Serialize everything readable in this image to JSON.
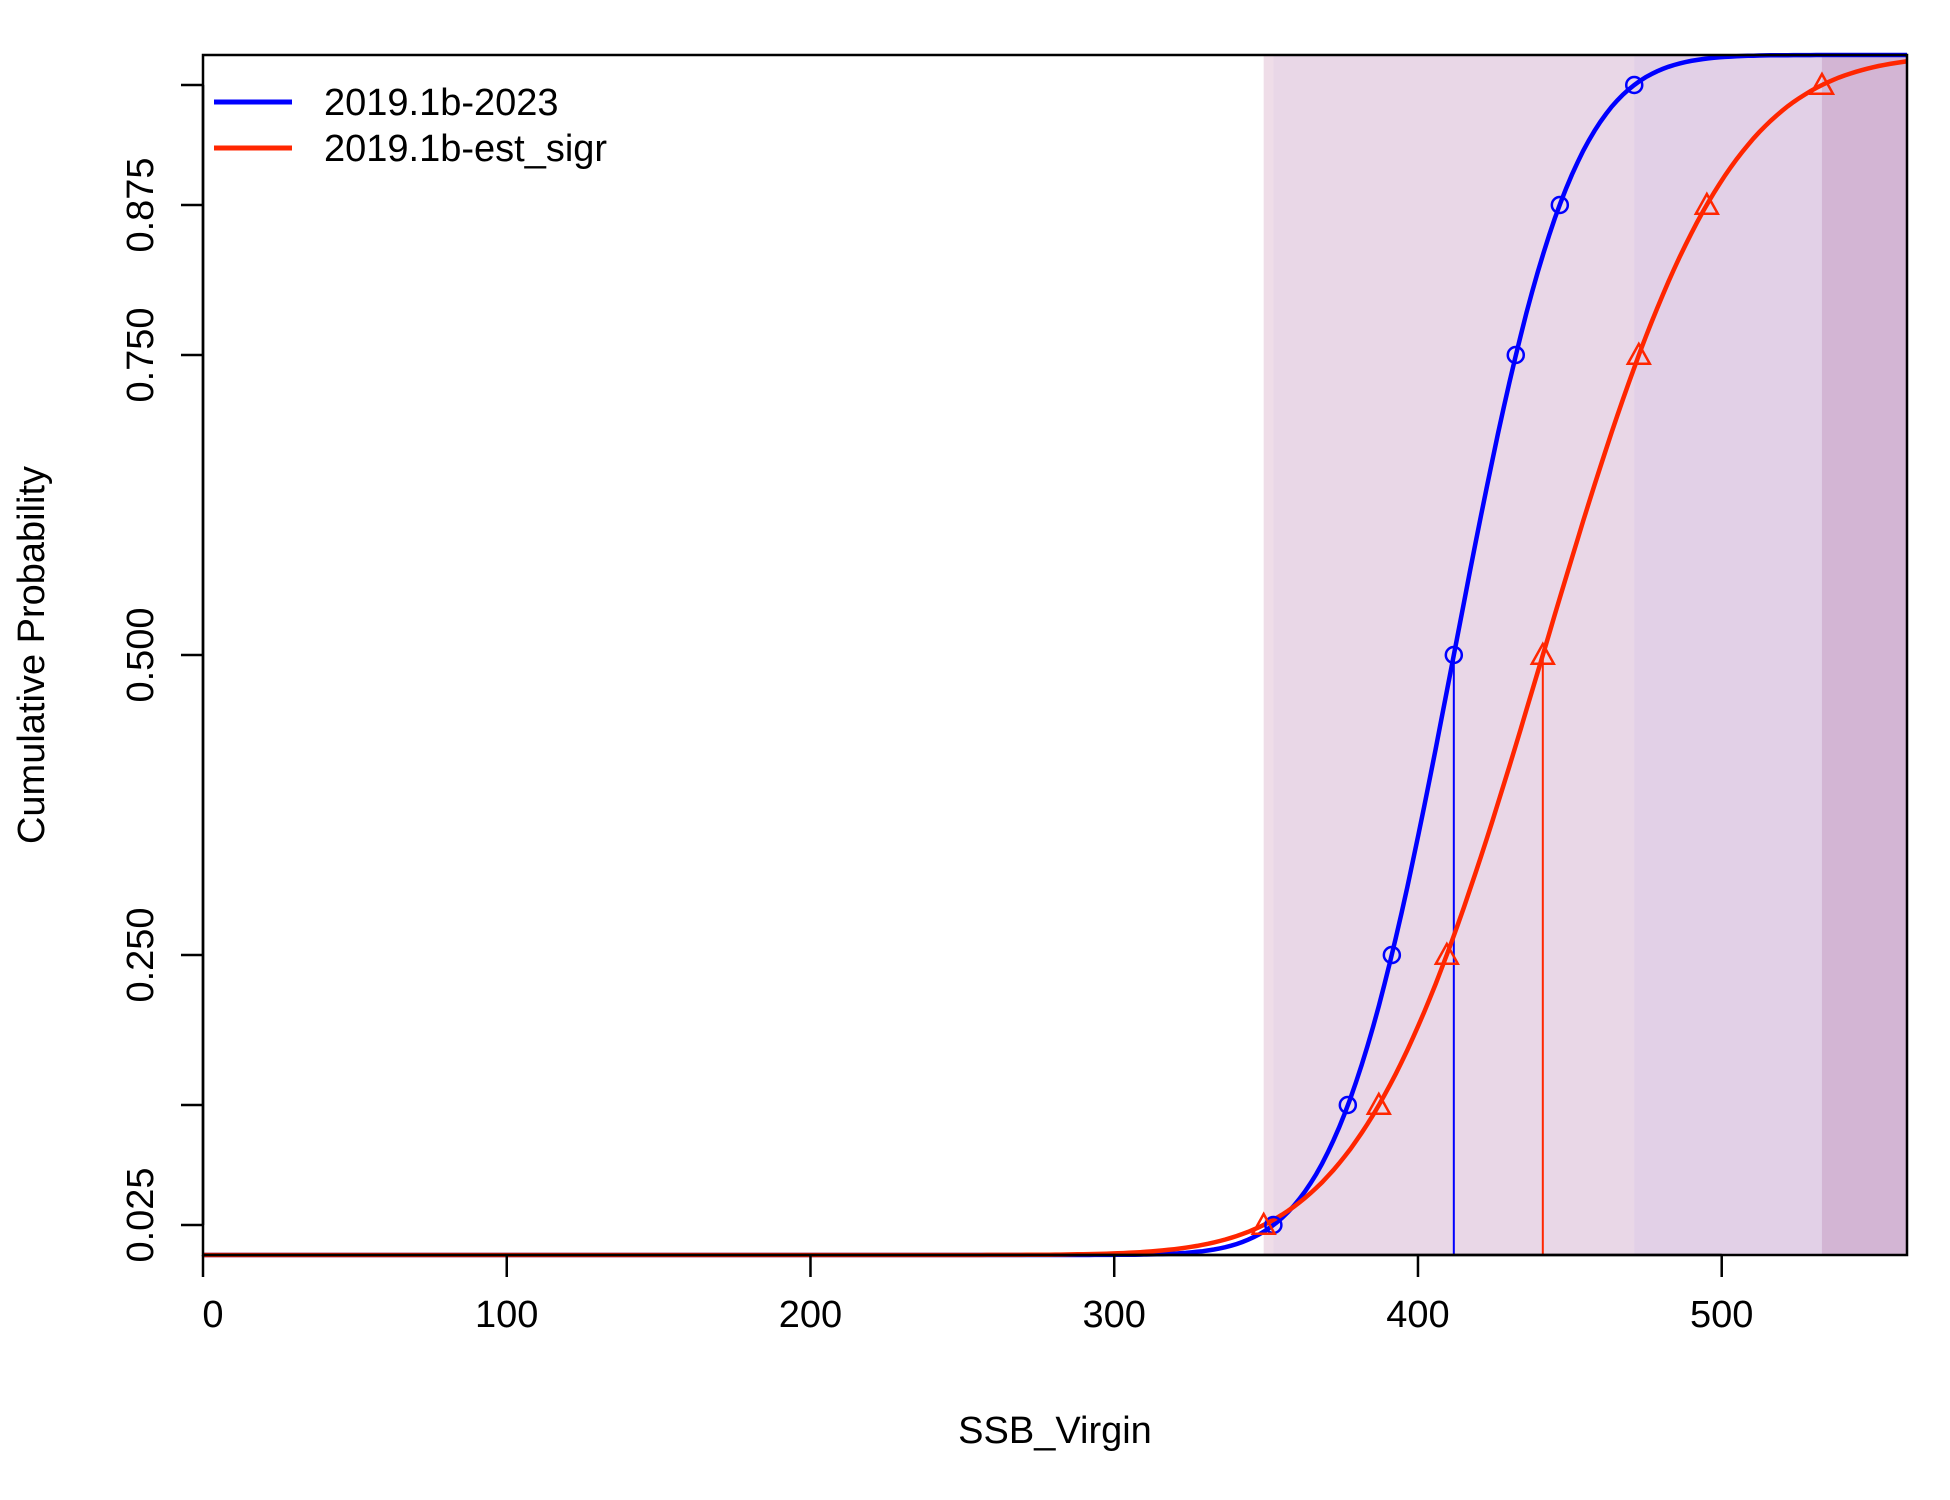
{
  "chart_data": {
    "type": "line",
    "xlabel": "SSB_Virgin",
    "ylabel": "Cumulative Probability",
    "xlim": [
      0,
      561
    ],
    "ylim": [
      0,
      1
    ],
    "x_ticks": [
      {
        "value": 0,
        "label": "0"
      },
      {
        "value": 100,
        "label": "100"
      },
      {
        "value": 200,
        "label": "200"
      },
      {
        "value": 300,
        "label": "300"
      },
      {
        "value": 400,
        "label": "400"
      },
      {
        "value": 500,
        "label": "500"
      }
    ],
    "y_ticks": [
      {
        "value": 0.025,
        "label": "0.025"
      },
      {
        "value": 0.125,
        "label": ""
      },
      {
        "value": 0.25,
        "label": "0.250"
      },
      {
        "value": 0.5,
        "label": "0.500"
      },
      {
        "value": 0.75,
        "label": "0.750"
      },
      {
        "value": 0.875,
        "label": "0.875"
      },
      {
        "value": 0.975,
        "label": ""
      }
    ],
    "legend_position": "top-left",
    "grid": false,
    "series": [
      {
        "name": "2019.1b-2023",
        "color": "#0000ff",
        "marker": "circle",
        "fill": "#e6e6fc",
        "tail_fill": "#cccbfb",
        "median": 411.8,
        "mean": 411.8,
        "sd": 30.3,
        "quantiles": [
          {
            "p": 0.025,
            "x": 352.4
          },
          {
            "p": 0.125,
            "x": 376.9
          },
          {
            "p": 0.25,
            "x": 391.4
          },
          {
            "p": 0.5,
            "x": 411.8
          },
          {
            "p": 0.75,
            "x": 432.2
          },
          {
            "p": 0.875,
            "x": 446.7
          },
          {
            "p": 0.975,
            "x": 471.2
          }
        ]
      },
      {
        "name": "2019.1b-est_sigr",
        "color": "#ff2600",
        "marker": "triangle",
        "fill": "#e9d1e0",
        "tail_fill": "#d6aec7",
        "median": 441.1,
        "mean": 441.1,
        "sd": 46.9,
        "quantiles": [
          {
            "p": 0.025,
            "x": 349.2
          },
          {
            "p": 0.125,
            "x": 387.1
          },
          {
            "p": 0.25,
            "x": 409.5
          },
          {
            "p": 0.5,
            "x": 441.1
          },
          {
            "p": 0.75,
            "x": 472.7
          },
          {
            "p": 0.875,
            "x": 495.1
          },
          {
            "p": 0.975,
            "x": 533.0
          }
        ]
      }
    ]
  }
}
